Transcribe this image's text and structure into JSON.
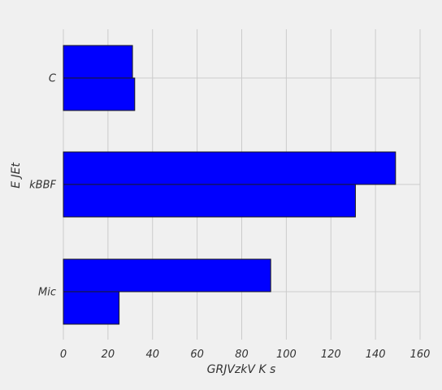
{
  "chart_data": {
    "type": "bar",
    "orientation": "horizontal",
    "categories": [
      "Mic",
      "kBBF",
      "C"
    ],
    "series": [
      {
        "values": [
          25,
          131,
          32
        ]
      },
      {
        "values": [
          93,
          149,
          31
        ]
      }
    ],
    "title": "",
    "xlabel": "GRJVzkV K s",
    "ylabel": "E JEt",
    "xlim": [
      0,
      160
    ],
    "xticks": [
      0,
      20,
      40,
      60,
      80,
      100,
      120,
      140,
      160
    ],
    "grid": true,
    "legend": "none",
    "colors": {
      "bar": "#0000ff",
      "edge": "#1a1a1a",
      "background": "#f0f0f0",
      "grid": "#cbcbcb",
      "text": "#333333"
    }
  }
}
